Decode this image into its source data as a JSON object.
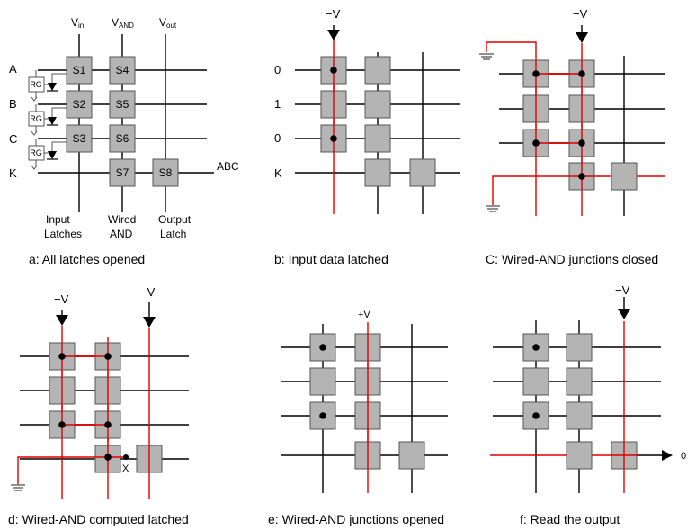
{
  "colors": {
    "wire": "#000000",
    "highlight": "#e00000",
    "switch_fill": "#b4b4b4",
    "switch_stroke": "#555555",
    "dot": "#000000"
  },
  "panels": {
    "a": {
      "caption": "a: All latches opened",
      "col_labels": [
        "V",
        "V",
        "V"
      ],
      "col_subs": [
        "in",
        "AND",
        "out"
      ],
      "row_labels": [
        "A",
        "B",
        "C",
        "K"
      ],
      "switch_labels": [
        "S1",
        "S2",
        "S3",
        "S4",
        "S5",
        "S6",
        "S7",
        "S8"
      ],
      "rg_label": "RG",
      "output_label": "ABC",
      "bottom_labels": {
        "input": [
          "Input",
          "Latches"
        ],
        "wired": [
          "Wired",
          "AND"
        ],
        "output": [
          "Output",
          "Latch"
        ]
      }
    },
    "b": {
      "caption": "b: Input data latched",
      "voltage": "−V",
      "row_labels": [
        "0",
        "1",
        "0",
        "K"
      ]
    },
    "c": {
      "caption": "C: Wired-AND junctions closed",
      "voltage": "−V"
    },
    "d": {
      "caption": "d: Wired-AND computed latched",
      "voltage_left": "−V",
      "voltage_right": "−V",
      "x_label": "X"
    },
    "e": {
      "caption": "e: Wired-AND junctions opened",
      "voltage": "+V"
    },
    "f": {
      "caption": "f: Read the output",
      "voltage": "−V",
      "output_value": "0"
    }
  }
}
